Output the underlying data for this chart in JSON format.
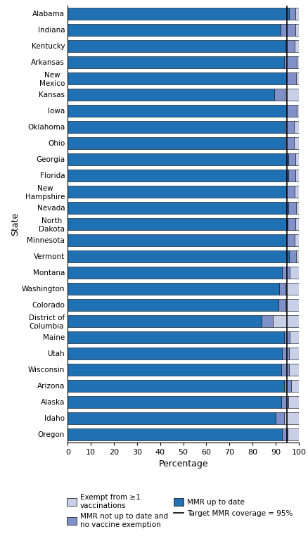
{
  "states": [
    "Alabama",
    "Indiana",
    "Kentucky",
    "Arkansas",
    "New\nMexico",
    "Kansas",
    "Iowa",
    "Oklahoma",
    "Ohio",
    "Georgia",
    "Florida",
    "New\nHampshire",
    "Nevada",
    "North\nDakota",
    "Minnesota",
    "Vermont",
    "Montana",
    "Washington",
    "Colorado",
    "District of\nColumbia",
    "Maine",
    "Utah",
    "Wisconsin",
    "Arizona",
    "Alaska",
    "Idaho",
    "Oregon"
  ],
  "mmr_uptodate": [
    95.9,
    92.2,
    94.4,
    93.5,
    94.5,
    89.5,
    94.8,
    94.0,
    93.9,
    95.5,
    95.4,
    94.7,
    95.4,
    95.2,
    95.0,
    95.9,
    92.8,
    91.5,
    91.2,
    84.0,
    93.8,
    92.8,
    92.4,
    93.7,
    92.4,
    89.9,
    92.8
  ],
  "not_utd_not_exempt": [
    2.7,
    6.3,
    3.7,
    5.6,
    4.2,
    4.5,
    4.2,
    4.0,
    4.1,
    3.0,
    3.1,
    3.6,
    3.4,
    3.2,
    3.2,
    3.0,
    3.2,
    2.9,
    3.2,
    4.7,
    2.4,
    2.9,
    3.4,
    3.1,
    3.1,
    3.9,
    2.5
  ],
  "exempt": [
    1.4,
    1.5,
    1.9,
    0.9,
    1.3,
    6.0,
    1.0,
    2.0,
    2.0,
    1.5,
    1.5,
    1.7,
    1.2,
    1.6,
    1.8,
    1.1,
    4.0,
    5.6,
    5.6,
    11.3,
    3.8,
    4.3,
    4.2,
    3.2,
    4.5,
    6.2,
    4.7
  ],
  "mmr_color": "#2070B4",
  "not_utd_color": "#8090C8",
  "exempt_color": "#C8D0E8",
  "target_line": 95,
  "xlabel": "Percentage",
  "ylabel": "State",
  "xlim": [
    0,
    100
  ],
  "xticks": [
    0,
    10,
    20,
    30,
    40,
    50,
    60,
    70,
    80,
    90,
    100
  ],
  "legend_exempt_label": "Exempt from ≥1\nvaccinations",
  "legend_mmr_label": "MMR up to date",
  "legend_not_utd_label": "MMR not up to date and\nno vaccine exemption",
  "legend_target_label": "Target MMR coverage = 95%"
}
